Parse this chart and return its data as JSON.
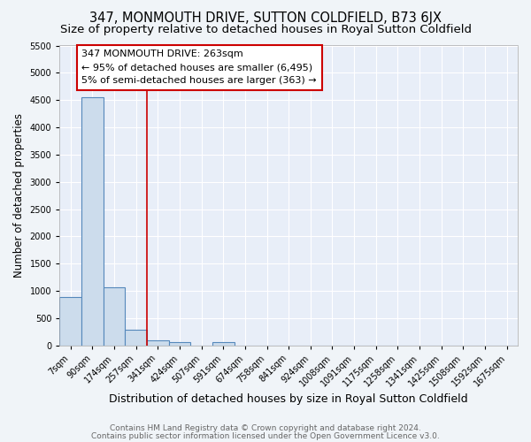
{
  "title": "347, MONMOUTH DRIVE, SUTTON COLDFIELD, B73 6JX",
  "subtitle": "Size of property relative to detached houses in Royal Sutton Coldfield",
  "xlabel": "Distribution of detached houses by size in Royal Sutton Coldfield",
  "ylabel": "Number of detached properties",
  "footer1": "Contains HM Land Registry data © Crown copyright and database right 2024.",
  "footer2": "Contains public sector information licensed under the Open Government Licence v3.0.",
  "bin_labels": [
    "7sqm",
    "90sqm",
    "174sqm",
    "257sqm",
    "341sqm",
    "424sqm",
    "507sqm",
    "591sqm",
    "674sqm",
    "758sqm",
    "841sqm",
    "924sqm",
    "1008sqm",
    "1091sqm",
    "1175sqm",
    "1258sqm",
    "1341sqm",
    "1425sqm",
    "1508sqm",
    "1592sqm",
    "1675sqm"
  ],
  "bar_values": [
    880,
    4550,
    1060,
    280,
    90,
    60,
    0,
    55,
    0,
    0,
    0,
    0,
    0,
    0,
    0,
    0,
    0,
    0,
    0,
    0,
    0
  ],
  "bar_color": "#ccdcec",
  "bar_edge_color": "#5588bb",
  "red_line_x": 3.5,
  "annotation_line1": "347 MONMOUTH DRIVE: 263sqm",
  "annotation_line2": "← 95% of detached houses are smaller (6,495)",
  "annotation_line3": "5% of semi-detached houses are larger (363) →",
  "annotation_box_color": "#ffffff",
  "annotation_box_edge_color": "#cc0000",
  "ylim": [
    0,
    5500
  ],
  "yticks": [
    0,
    500,
    1000,
    1500,
    2000,
    2500,
    3000,
    3500,
    4000,
    4500,
    5000,
    5500
  ],
  "fig_bg_color": "#f0f4f8",
  "plot_bg_color": "#e8eef8",
  "title_fontsize": 10.5,
  "subtitle_fontsize": 9.5,
  "xlabel_fontsize": 9,
  "ylabel_fontsize": 8.5,
  "tick_fontsize": 7,
  "annotation_fontsize": 8,
  "footer_fontsize": 6.5,
  "grid_color": "#ffffff",
  "grid_lw": 0.8
}
